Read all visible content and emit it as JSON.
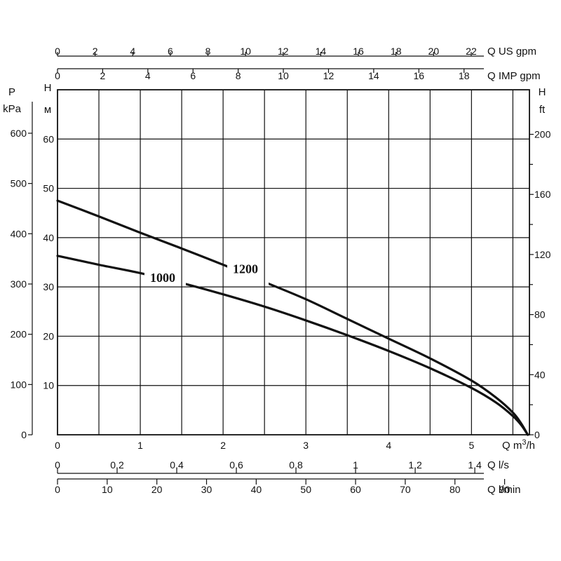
{
  "chart_data": {
    "type": "line",
    "x_unit": "m3/h",
    "xlim": [
      0,
      5.7
    ],
    "ylim": [
      0,
      70
    ],
    "grid": true,
    "series": [
      {
        "name": "1200",
        "x": [
          0,
          0.5,
          1.0,
          1.5,
          2.0,
          2.5,
          3.0,
          3.5,
          4.0,
          4.5,
          5.0,
          5.3,
          5.5,
          5.6,
          5.68
        ],
        "y": [
          47.5,
          44.3,
          41.0,
          37.8,
          34.5,
          31.0,
          27.5,
          23.5,
          19.5,
          15.5,
          11.0,
          7.5,
          4.5,
          2.3,
          0
        ]
      },
      {
        "name": "1000",
        "x": [
          0,
          0.5,
          1.0,
          1.5,
          2.0,
          2.5,
          3.0,
          3.5,
          4.0,
          4.5,
          5.0,
          5.3,
          5.5,
          5.6,
          5.68
        ],
        "y": [
          36.3,
          34.5,
          32.8,
          30.8,
          28.5,
          26.0,
          23.2,
          20.2,
          17.0,
          13.5,
          9.5,
          6.5,
          3.8,
          2.0,
          0
        ]
      }
    ],
    "curve_labels": [
      "1200",
      "1000"
    ],
    "axes": {
      "x_top1": {
        "label": "Q US gpm",
        "ticks": [
          "0",
          "2",
          "4",
          "6",
          "8",
          "10",
          "12",
          "14",
          "16",
          "18",
          "20",
          "22"
        ]
      },
      "x_top2": {
        "label": "Q IMP gpm",
        "ticks": [
          "0",
          "2",
          "4",
          "6",
          "8",
          "10",
          "12",
          "14",
          "16",
          "18"
        ]
      },
      "x_main": {
        "label": "Q m",
        "label_sup": "3",
        "label_suffix": "/h",
        "ticks": [
          "0",
          "1",
          "2",
          "3",
          "4",
          "5"
        ]
      },
      "x_ls": {
        "label": "Q l/s",
        "ticks": [
          "0",
          "0,2",
          "0,4",
          "0,6",
          "0,8",
          "1",
          "1,2",
          "1,4"
        ]
      },
      "x_lmin": {
        "label": "Q l/min",
        "ticks": [
          "0",
          "10",
          "20",
          "30",
          "40",
          "50",
          "60",
          "70",
          "80",
          "90"
        ]
      },
      "y_left_p": {
        "label": "P",
        "unit": "kPa",
        "ticks": [
          "0",
          "100",
          "200",
          "300",
          "400",
          "500",
          "600"
        ]
      },
      "y_left_h": {
        "label": "H",
        "unit": "м",
        "ticks": [
          "10",
          "20",
          "30",
          "40",
          "50",
          "60"
        ]
      },
      "y_right": {
        "label": "H",
        "unit": "ft",
        "ticks": [
          "0",
          "40",
          "80",
          "120",
          "160",
          "200"
        ]
      }
    }
  }
}
